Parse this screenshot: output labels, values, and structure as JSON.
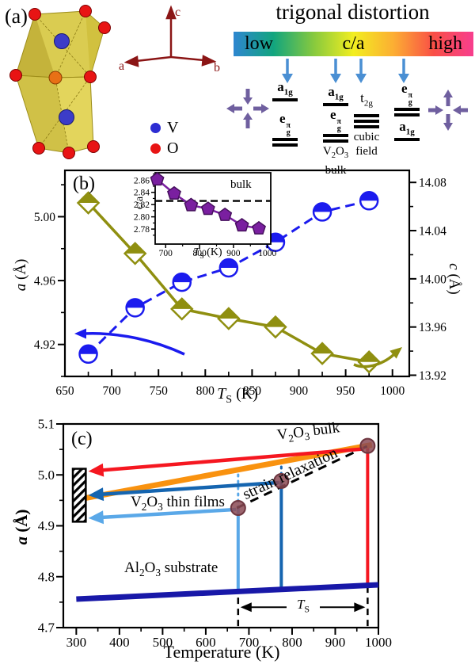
{
  "panels": {
    "a": "(a)",
    "b": "(b)",
    "c": "(c)"
  },
  "panel_a": {
    "title": "trigonal distortion",
    "gradient": {
      "left": "low",
      "center": "c/a",
      "right": "high",
      "colors": [
        "#2e86d0",
        "#12a57e",
        "#86c93e",
        "#f2ee20",
        "#fcae33",
        "#f94f46",
        "#f73e8e"
      ]
    },
    "arrow_color": "#4a8fd3",
    "cross_color": "#6f5f9f",
    "crystal": {
      "legend": [
        {
          "label": "V",
          "color": "#2d2dd2"
        },
        {
          "label": "O",
          "color": "#e81414"
        }
      ],
      "axes": {
        "a": "a",
        "b": "b",
        "c": "c"
      }
    },
    "diagrams": {
      "low": {
        "upper": {
          "base": "a",
          "sub": "1g"
        },
        "lower": {
          "base": "e",
          "sub": "g",
          "sup": "π"
        }
      },
      "bulk": {
        "upper": {
          "base": "a",
          "sub": "1g"
        },
        "lower": {
          "base": "e",
          "sub": "g",
          "sup": "π"
        },
        "caption_f": {
          "pre": "V",
          "s1": "2",
          "mid": "O",
          "s2": "3"
        },
        "caption2": "bulk"
      },
      "cubic": {
        "label": {
          "base": "t",
          "sub": "2g"
        },
        "caption1": "cubic",
        "caption2": "field"
      },
      "high": {
        "upper": {
          "base": "e",
          "sub": "g",
          "sup": "π"
        },
        "lower": {
          "base": "a",
          "sub": "1g"
        }
      }
    }
  },
  "panel_b": {
    "ylabel_left": {
      "main": "a",
      "rest": " (Å)"
    },
    "ylabel_right": {
      "main": "c",
      "rest": " (Å)"
    },
    "xlabel": {
      "main": "T",
      "sub": "S",
      "rest": " (K)"
    },
    "inset": {
      "ylabel": "c/a",
      "xlabel": {
        "main": "T",
        "sub": "S",
        "rest": " (K)"
      },
      "bulk_label": "bulk"
    }
  },
  "panel_c": {
    "ylabel": {
      "main": "a",
      "rest": " (Å)"
    },
    "xlabel": "Temperature (K)",
    "labels": {
      "bulk": {
        "pre": "V",
        "s1": "2",
        "mid": "O",
        "s2": "3",
        "rest": " bulk"
      },
      "films": {
        "pre": "V",
        "s1": "2",
        "mid": "O",
        "s2": "3",
        "rest": " thin films"
      },
      "substrate": {
        "pre": "Al",
        "s1": "2",
        "mid": "O",
        "s2": "3",
        "rest": " substrate"
      },
      "strain": "strain relaxation",
      "ts": {
        "main": "T",
        "sub": "S"
      }
    }
  },
  "chart_data": [
    {
      "id": "panel-b",
      "type": "line",
      "xlabel": "T_S (K)",
      "ylabel_left": "a (Å)",
      "ylabel_right": "c (Å)",
      "xlim": [
        650,
        1018
      ],
      "x_ticks": [
        "650",
        "700",
        "750",
        "800",
        "850",
        "900",
        "950",
        "1000"
      ],
      "ylim_left": [
        4.9,
        5.029
      ],
      "y_ticks_left": [
        "4.92",
        "4.96",
        "5.00"
      ],
      "ylim_right": [
        13.919,
        14.09
      ],
      "y_ticks_right": [
        "13.92",
        "13.96",
        "14.00",
        "14.04",
        "14.08"
      ],
      "series": [
        {
          "name": "a lattice parameter",
          "axis": "left",
          "marker": "half-circle",
          "color": "#1b1bee",
          "line": "dashed",
          "x": [
            675,
            725,
            775,
            825,
            875,
            925,
            975
          ],
          "y": [
            4.914,
            4.943,
            4.959,
            4.968,
            4.984,
            5.003,
            5.01
          ]
        },
        {
          "name": "c lattice parameter",
          "axis": "right",
          "marker": "half-diamond",
          "color": "#8f8f10",
          "line": "solid",
          "x": [
            675,
            725,
            775,
            825,
            875,
            925,
            975
          ],
          "y": [
            14.063,
            14.021,
            13.975,
            13.967,
            13.96,
            13.938,
            13.931
          ]
        }
      ]
    },
    {
      "id": "panel-b-inset",
      "type": "line",
      "xlabel": "T_S (K)",
      "ylabel": "c/a",
      "xlim": [
        669,
        1010
      ],
      "x_ticks": [
        "700",
        "800",
        "900",
        "1000"
      ],
      "ylim": [
        2.7555,
        2.872
      ],
      "y_ticks": [
        "2.78",
        "2.80",
        "2.82",
        "2.84",
        "2.86"
      ],
      "reference_line": {
        "value": 2.826,
        "label": "bulk",
        "style": "dashed"
      },
      "series": [
        {
          "name": "c/a ratio",
          "marker": "pentagon",
          "color": "#7a1fa0",
          "edge": "#45105c",
          "x": [
            675,
            725,
            775,
            825,
            875,
            925,
            975
          ],
          "y": [
            2.861,
            2.838,
            2.819,
            2.813,
            2.803,
            2.786,
            2.781
          ]
        }
      ]
    },
    {
      "id": "panel-c",
      "type": "line",
      "xlabel": "Temperature (K)",
      "ylabel": "a (Å)",
      "xlim": [
        270,
        1000
      ],
      "x_ticks": [
        "300",
        "400",
        "500",
        "600",
        "700",
        "800",
        "900",
        "1000"
      ],
      "ylim": [
        4.7,
        5.1
      ],
      "y_ticks": [
        "4.7",
        "4.8",
        "4.9",
        "5.0",
        "5.1"
      ],
      "lines": [
        {
          "name": "V2O3 bulk",
          "color": "#f9920f",
          "width": 7,
          "points": [
            [
              300,
              4.951
            ],
            [
              985,
              5.059
            ]
          ]
        },
        {
          "name": "Al2O3 substrate",
          "color": "#1818a8",
          "width": 7,
          "points": [
            [
              300,
              4.756
            ],
            [
              1000,
              4.784
            ]
          ]
        },
        {
          "name": "strain relaxation",
          "color": "#000000",
          "width": 3,
          "style": "dashed",
          "points": [
            [
              672,
              4.935
            ],
            [
              978,
              5.058
            ]
          ]
        }
      ],
      "growth_points": {
        "color": "#8b4a55",
        "edge": "#6e3640",
        "x": [
          675,
          775,
          975
        ],
        "y": [
          4.935,
          4.988,
          5.057
        ]
      },
      "arrows": [
        {
          "color": "#f51720",
          "from": [
            966,
            5.051
          ],
          "to": [
            328,
            5.007
          ]
        },
        {
          "color": "#1565b0",
          "from": [
            770,
            4.985
          ],
          "to": [
            328,
            4.96
          ]
        },
        {
          "color": "#5aa8e8",
          "from": [
            670,
            4.932
          ],
          "to": [
            328,
            4.915
          ]
        }
      ],
      "vlines": [
        {
          "color": "#f51720",
          "x": 975,
          "y1": 4.781,
          "y2": 5.057,
          "w": 4
        },
        {
          "color": "#1565b0",
          "x": 775,
          "y1": 4.775,
          "y2": 4.988,
          "w": 4
        },
        {
          "color": "#1565b0",
          "x": 775,
          "y1": 4.988,
          "y2": 5.027,
          "w": 3,
          "style": "dotted"
        },
        {
          "color": "#5aa8e8",
          "x": 675,
          "y1": 4.772,
          "y2": 4.935,
          "w": 4
        },
        {
          "color": "#5aa8e8",
          "x": 675,
          "y1": 4.935,
          "y2": 5.004,
          "w": 3,
          "style": "dotted"
        },
        {
          "color": "#000000",
          "x": 675,
          "y1": 4.703,
          "y2": 4.768,
          "w": 2.5,
          "style": "dashed"
        },
        {
          "color": "#000000",
          "x": 975,
          "y1": 4.703,
          "y2": 4.778,
          "w": 2.5,
          "style": "dashed"
        }
      ],
      "ts_span": {
        "x1": 675,
        "x2": 975,
        "y": 4.74
      },
      "hatch_box": {
        "x1": 292,
        "x2": 322,
        "y1": 4.908,
        "y2": 5.012
      }
    }
  ]
}
